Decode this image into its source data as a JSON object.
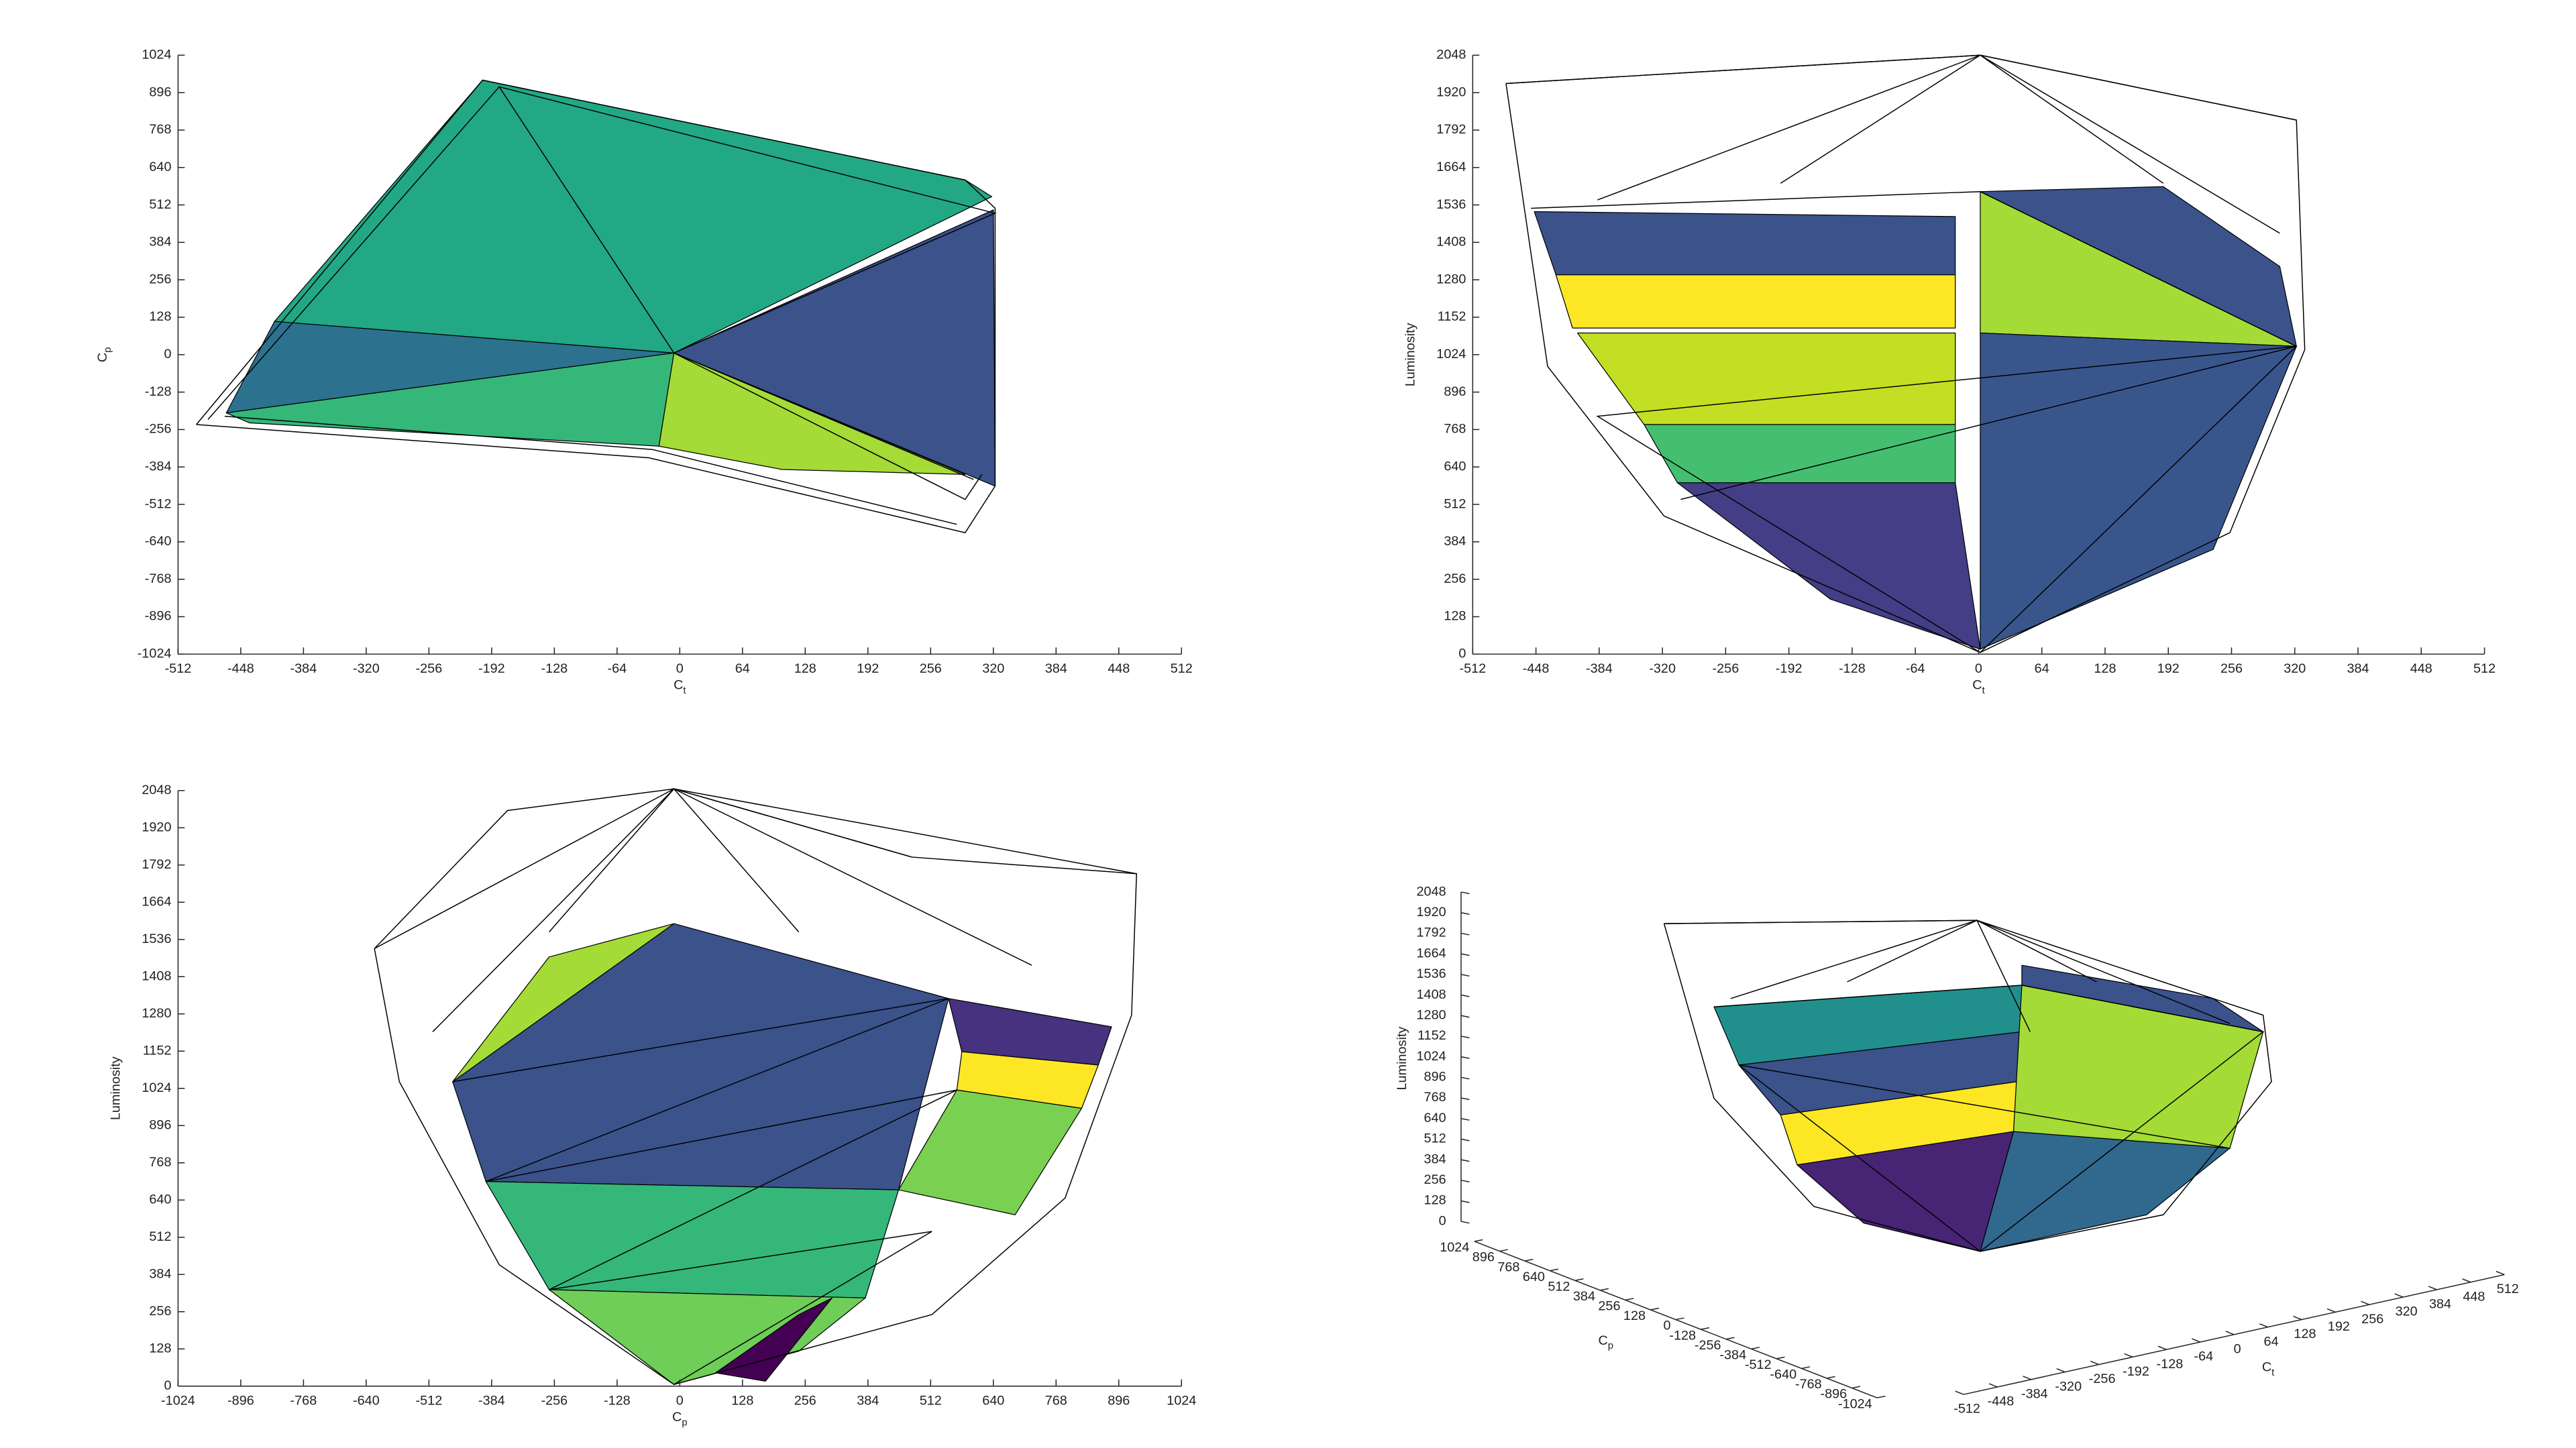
{
  "chart_data": [
    {
      "type": "surface",
      "xlabel": {
        "text": "C",
        "subscript": "t"
      },
      "ylabel": {
        "text": "C",
        "subscript": "p"
      },
      "xlim": [
        -512,
        512
      ],
      "xticks": [
        -512,
        -448,
        -384,
        -320,
        -256,
        -192,
        -128,
        -64,
        0,
        64,
        128,
        192,
        256,
        320,
        384,
        448,
        512
      ],
      "ylim": [
        -1024,
        1024
      ],
      "yticks": [
        -1024,
        -896,
        -768,
        -640,
        -512,
        -384,
        -256,
        -128,
        0,
        128,
        256,
        384,
        512,
        640,
        768,
        896,
        1024
      ]
    },
    {
      "type": "surface",
      "xlabel": {
        "text": "C",
        "subscript": "t"
      },
      "ylabel": {
        "text": "Luminosity"
      },
      "xlim": [
        -512,
        512
      ],
      "xticks": [
        -512,
        -448,
        -384,
        -320,
        -256,
        -192,
        -128,
        -64,
        0,
        64,
        128,
        192,
        256,
        320,
        384,
        448,
        512
      ],
      "ylim": [
        0,
        2048
      ],
      "yticks": [
        0,
        128,
        256,
        384,
        512,
        640,
        768,
        896,
        1024,
        1152,
        1280,
        1408,
        1536,
        1664,
        1792,
        1920,
        2048
      ]
    },
    {
      "type": "surface",
      "xlabel": {
        "text": "C",
        "subscript": "p"
      },
      "ylabel": {
        "text": "Luminosity"
      },
      "xlim": [
        -1024,
        1024
      ],
      "xticks": [
        -1024,
        -896,
        -768,
        -640,
        -512,
        -384,
        -256,
        -128,
        0,
        128,
        256,
        384,
        512,
        640,
        768,
        896,
        1024
      ],
      "ylim": [
        0,
        2048
      ],
      "yticks": [
        0,
        128,
        256,
        384,
        512,
        640,
        768,
        896,
        1024,
        1152,
        1280,
        1408,
        1536,
        1664,
        1792,
        1920,
        2048
      ]
    },
    {
      "type": "surface3d",
      "xlabel": {
        "text": "C",
        "subscript": "t"
      },
      "ylabel": {
        "text": "C",
        "subscript": "p"
      },
      "zlabel": {
        "text": "Luminosity"
      },
      "xlim": [
        -512,
        512
      ],
      "xticks": [
        -512,
        -448,
        -384,
        -320,
        -256,
        -192,
        -128,
        -64,
        0,
        64,
        128,
        192,
        256,
        320,
        384,
        448,
        512
      ],
      "ylim": [
        -1024,
        1024
      ],
      "yticks": [
        -1024,
        -896,
        -768,
        -640,
        -512,
        -384,
        -256,
        -128,
        0,
        128,
        256,
        384,
        512,
        640,
        768,
        896,
        1024
      ],
      "zlim": [
        0,
        2048
      ],
      "zticks": [
        0,
        128,
        256,
        384,
        512,
        640,
        768,
        896,
        1024,
        1152,
        1280,
        1408,
        1536,
        1664,
        1792,
        1920,
        2048
      ]
    }
  ]
}
